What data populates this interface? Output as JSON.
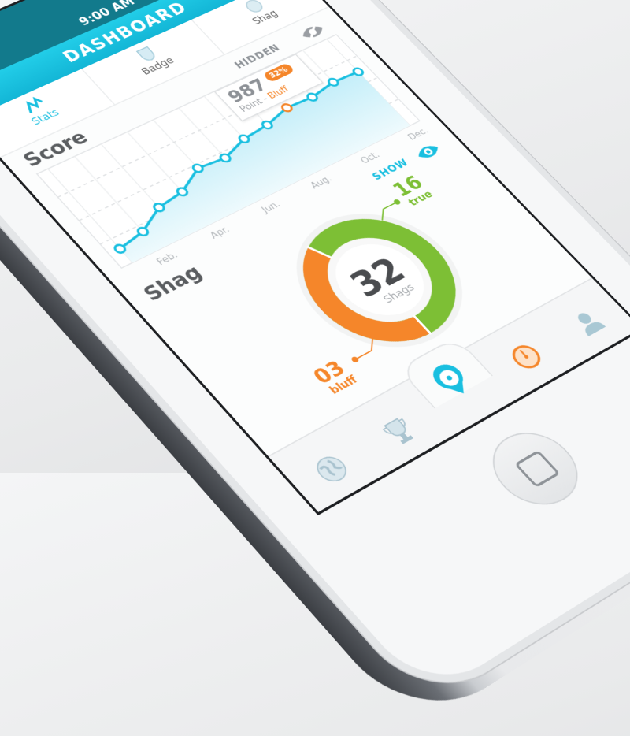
{
  "status_bar": {
    "time": "9:00 AM"
  },
  "header": {
    "title": "DASHBOARD"
  },
  "tabs": [
    {
      "label": "Stats",
      "icon": "stats-zigzag-icon",
      "active": true
    },
    {
      "label": "Badge",
      "icon": "badge-shield-icon",
      "active": false
    },
    {
      "label": "Shag",
      "icon": "shag-circle-icon",
      "active": false
    }
  ],
  "score": {
    "title": "Score",
    "toggle_label": "HIDDEN",
    "toggle_icon": "eye-off-icon"
  },
  "chart_data": {
    "type": "line",
    "x_tick_labels": [
      "Feb.",
      "Apr.",
      "Jun.",
      "Aug.",
      "Oct.",
      "Dec."
    ],
    "values": [
      12,
      20,
      42,
      48,
      70,
      66,
      80,
      84,
      95,
      93,
      100,
      98
    ],
    "ylim": [
      0,
      100
    ],
    "grid": true,
    "highlight_index": 8,
    "tooltip": {
      "value": "987",
      "badge": "32%",
      "label": "Point - ",
      "label_highlight": "Bluff"
    }
  },
  "shag": {
    "title": "Shag",
    "toggle_label": "SHOW",
    "toggle_icon": "eye-icon",
    "total": "32",
    "total_label": "Shags",
    "true_count": "16",
    "true_label": "true",
    "bluff_count": "03",
    "bluff_label": "bluff",
    "bluff_fraction": 0.42
  },
  "tab_bar": {
    "items": [
      {
        "icon": "globe-icon"
      },
      {
        "icon": "trophy-icon"
      },
      {
        "icon": "location-pin-icon",
        "active": true
      },
      {
        "icon": "gauge-icon"
      },
      {
        "icon": "profile-icon"
      }
    ]
  },
  "colors": {
    "accent": "#19bfe0",
    "header": "#13b6d6",
    "status_bar": "#127a8c",
    "bluff": "#f5862a",
    "true": "#7dbf35",
    "chart_fill": "#d6f3fb"
  }
}
